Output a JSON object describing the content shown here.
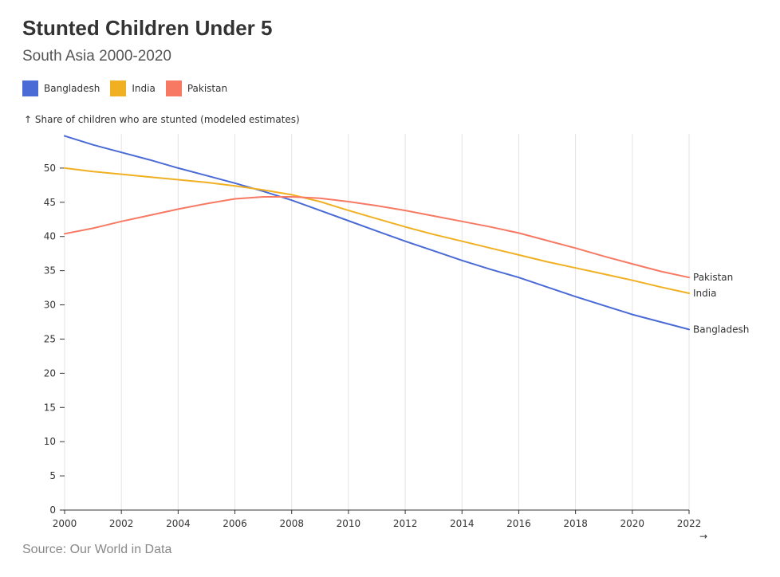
{
  "header": {
    "title": "Stunted Children Under 5",
    "subtitle": "South Asia 2000-2020"
  },
  "legend": {
    "items": [
      {
        "label": "Bangladesh",
        "color": "#4a6ad6"
      },
      {
        "label": "India",
        "color": "#f0b021"
      },
      {
        "label": "Pakistan",
        "color": "#f87963"
      }
    ]
  },
  "footer": {
    "source": "Source: Our World in Data"
  },
  "chart_data": {
    "type": "line",
    "title": "Stunted Children Under 5",
    "subtitle": "South Asia 2000-2020",
    "ylabel": "↑ Share of children who are stunted (modeled estimates)",
    "xlabel": "",
    "x_arrow": "→",
    "xlim": [
      2000,
      2022
    ],
    "ylim": [
      0,
      55
    ],
    "x_ticks": [
      2000,
      2002,
      2004,
      2006,
      2008,
      2010,
      2012,
      2014,
      2016,
      2018,
      2020,
      2022
    ],
    "y_ticks": [
      0,
      5,
      10,
      15,
      20,
      25,
      30,
      35,
      40,
      45,
      50
    ],
    "grid": "vertical",
    "legend_position": "top-left",
    "x": [
      2000,
      2001,
      2002,
      2003,
      2004,
      2005,
      2006,
      2007,
      2008,
      2009,
      2010,
      2011,
      2012,
      2013,
      2014,
      2015,
      2016,
      2017,
      2018,
      2019,
      2020,
      2021,
      2022
    ],
    "series": [
      {
        "name": "Bangladesh",
        "color": "#4a6ad6",
        "end_label": "Bangladesh",
        "values": [
          54.7,
          53.4,
          52.3,
          51.2,
          50.0,
          48.9,
          47.8,
          46.6,
          45.3,
          43.8,
          42.3,
          40.8,
          39.3,
          37.9,
          36.5,
          35.2,
          34.0,
          32.6,
          31.2,
          29.9,
          28.6,
          27.5,
          26.4
        ]
      },
      {
        "name": "India",
        "color": "#f0b021",
        "end_label": "India",
        "values": [
          50.0,
          49.5,
          49.1,
          48.7,
          48.3,
          47.9,
          47.4,
          46.8,
          46.1,
          45.1,
          43.8,
          42.6,
          41.4,
          40.3,
          39.3,
          38.3,
          37.3,
          36.3,
          35.4,
          34.5,
          33.6,
          32.6,
          31.7
        ]
      },
      {
        "name": "Pakistan",
        "color": "#f87963",
        "end_label": "Pakistan",
        "values": [
          40.4,
          41.2,
          42.2,
          43.1,
          44.0,
          44.8,
          45.5,
          45.8,
          45.8,
          45.6,
          45.1,
          44.5,
          43.8,
          43.0,
          42.2,
          41.4,
          40.5,
          39.4,
          38.3,
          37.1,
          36.0,
          34.9,
          34.0
        ]
      }
    ]
  }
}
